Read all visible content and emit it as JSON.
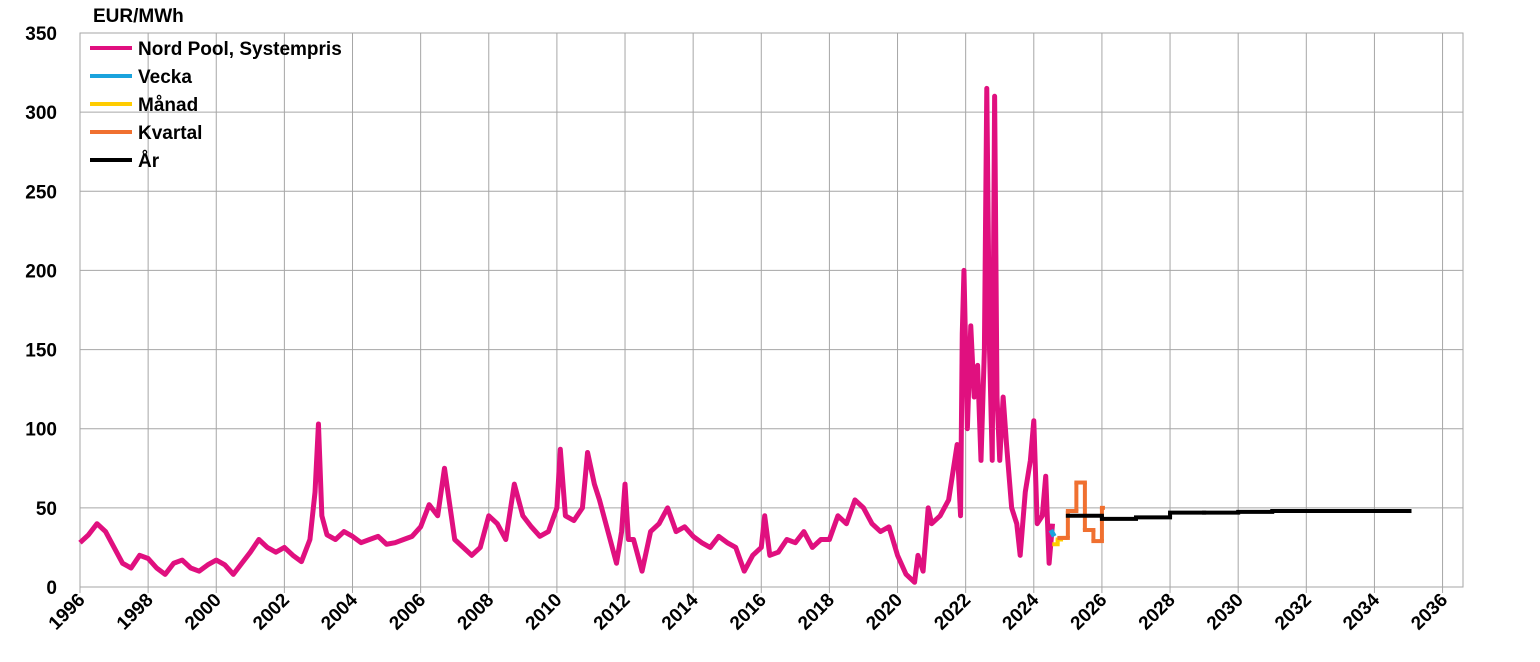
{
  "chart_data": {
    "type": "line",
    "y_label": "EUR/MWh",
    "xlim": [
      1996,
      2036.6
    ],
    "xticks": [
      1996,
      1998,
      2000,
      2002,
      2004,
      2006,
      2008,
      2010,
      2012,
      2014,
      2016,
      2018,
      2020,
      2022,
      2024,
      2026,
      2028,
      2030,
      2032,
      2034,
      2036
    ],
    "ylim": [
      0,
      350
    ],
    "yticks": [
      0,
      50,
      100,
      150,
      200,
      250,
      300,
      350
    ],
    "grid": true,
    "legend": "top-left",
    "series": [
      {
        "name": "Nord Pool, Systempris",
        "color": "#e0107f",
        "step": false,
        "x": [
          1996,
          1996.25,
          1996.5,
          1996.75,
          1997,
          1997.25,
          1997.5,
          1997.75,
          1998,
          1998.25,
          1998.5,
          1998.75,
          1999,
          1999.25,
          1999.5,
          1999.75,
          2000,
          2000.25,
          2000.5,
          2000.75,
          2001,
          2001.25,
          2001.5,
          2001.75,
          2002,
          2002.25,
          2002.5,
          2002.75,
          2002.9,
          2003,
          2003.1,
          2003.25,
          2003.5,
          2003.75,
          2004,
          2004.25,
          2004.5,
          2004.75,
          2005,
          2005.25,
          2005.5,
          2005.75,
          2006,
          2006.25,
          2006.5,
          2006.7,
          2006.9,
          2007,
          2007.25,
          2007.5,
          2007.75,
          2008,
          2008.25,
          2008.5,
          2008.75,
          2009,
          2009.25,
          2009.5,
          2009.75,
          2010,
          2010.1,
          2010.25,
          2010.5,
          2010.75,
          2010.9,
          2011.1,
          2011.25,
          2011.5,
          2011.75,
          2011.9,
          2012,
          2012.1,
          2012.25,
          2012.5,
          2012.75,
          2013,
          2013.25,
          2013.5,
          2013.75,
          2014,
          2014.25,
          2014.5,
          2014.75,
          2015,
          2015.25,
          2015.5,
          2015.75,
          2016,
          2016.1,
          2016.25,
          2016.5,
          2016.75,
          2017,
          2017.25,
          2017.5,
          2017.75,
          2018,
          2018.25,
          2018.5,
          2018.75,
          2019,
          2019.25,
          2019.5,
          2019.75,
          2020,
          2020.25,
          2020.5,
          2020.6,
          2020.75,
          2020.9,
          2021,
          2021.25,
          2021.5,
          2021.75,
          2021.85,
          2021.9,
          2021.95,
          2022.05,
          2022.15,
          2022.25,
          2022.35,
          2022.45,
          2022.55,
          2022.62,
          2022.7,
          2022.78,
          2022.85,
          2022.92,
          2023,
          2023.1,
          2023.2,
          2023.35,
          2023.5,
          2023.6,
          2023.75,
          2023.9,
          2024,
          2024.1,
          2024.25,
          2024.35,
          2024.45,
          2024.55
        ],
        "values": [
          28,
          33,
          40,
          35,
          25,
          15,
          12,
          20,
          18,
          12,
          8,
          15,
          17,
          12,
          10,
          14,
          17,
          14,
          8,
          15,
          22,
          30,
          25,
          22,
          25,
          20,
          16,
          30,
          60,
          103,
          45,
          33,
          30,
          35,
          32,
          28,
          30,
          32,
          27,
          28,
          30,
          32,
          38,
          52,
          45,
          75,
          45,
          30,
          25,
          20,
          25,
          45,
          40,
          30,
          65,
          45,
          38,
          32,
          35,
          50,
          87,
          45,
          42,
          50,
          85,
          65,
          55,
          35,
          15,
          35,
          65,
          30,
          30,
          10,
          35,
          40,
          50,
          35,
          38,
          32,
          28,
          25,
          32,
          28,
          25,
          10,
          20,
          25,
          45,
          20,
          22,
          30,
          28,
          35,
          25,
          30,
          30,
          45,
          40,
          55,
          50,
          40,
          35,
          38,
          20,
          8,
          3,
          20,
          10,
          50,
          40,
          45,
          55,
          90,
          45,
          160,
          200,
          100,
          165,
          120,
          140,
          80,
          150,
          315,
          150,
          80,
          310,
          120,
          80,
          120,
          90,
          50,
          40,
          20,
          60,
          80,
          105,
          40,
          45,
          70,
          15,
          40
        ]
      },
      {
        "name": "Vecka",
        "color": "#1aa3dd",
        "step": false,
        "x": [
          2024.5,
          2024.6
        ],
        "values": [
          36,
          32
        ]
      },
      {
        "name": "Månad",
        "color": "#ffcc00",
        "step": true,
        "x": [
          2024.6,
          2024.7,
          2024.8,
          2024.9
        ],
        "values": [
          27,
          30,
          31,
          31
        ]
      },
      {
        "name": "Kvartal",
        "color": "#f07030",
        "step": true,
        "x": [
          2024.75,
          2025,
          2025.25,
          2025.5,
          2025.75,
          2026
        ],
        "values": [
          31,
          48,
          66,
          36,
          29,
          50
        ]
      },
      {
        "name": "År",
        "color": "#000000",
        "step": true,
        "x": [
          2025,
          2026,
          2027,
          2028,
          2029,
          2030,
          2031,
          2032,
          2033,
          2034,
          2035
        ],
        "values": [
          45,
          43,
          44,
          47,
          47,
          47.5,
          48,
          48,
          48,
          48,
          48
        ]
      }
    ]
  }
}
